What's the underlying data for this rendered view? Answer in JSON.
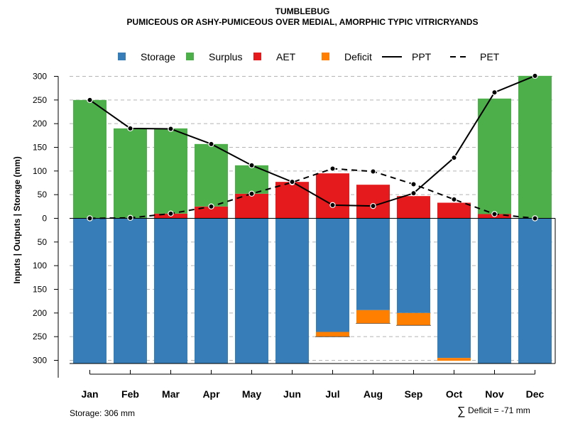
{
  "chart_data": {
    "type": "bar",
    "title": "TUMBLEBUG",
    "subtitle": "PUMICEOUS OR ASHY-PUMICEOUS OVER MEDIAL, AMORPHIC TYPIC VITRICRYANDS",
    "ylabel": "Inputs | Outputs | Storage     (mm)",
    "ylim": [
      -306,
      306
    ],
    "y_ticks": [
      300,
      250,
      200,
      150,
      100,
      50,
      0,
      -50,
      -100,
      -150,
      -200,
      -250,
      -300
    ],
    "y_tick_labels": [
      "300",
      "250",
      "200",
      "150",
      "100",
      "50",
      "0",
      "50",
      "100",
      "150",
      "200",
      "250",
      "300"
    ],
    "grid": "horizontal dashed",
    "legend_position": "top",
    "categories": [
      "Jan",
      "Feb",
      "Mar",
      "Apr",
      "May",
      "Jun",
      "Jul",
      "Aug",
      "Sep",
      "Oct",
      "Nov",
      "Dec"
    ],
    "series": [
      {
        "name": "Storage",
        "kind": "bar-below",
        "color": "#377EB8",
        "values": [
          306,
          306,
          306,
          306,
          306,
          306,
          240,
          194,
          200,
          295,
          306,
          306
        ]
      },
      {
        "name": "Surplus",
        "kind": "bar-above",
        "color": "#4DAF4A",
        "values": [
          250,
          190,
          180,
          132,
          60,
          0,
          0,
          0,
          0,
          0,
          244,
          301
        ]
      },
      {
        "name": "AET",
        "kind": "bar-above",
        "color": "#E41A1C",
        "values": [
          0,
          0,
          10,
          25,
          52,
          77,
          95,
          71,
          47,
          33,
          9,
          0
        ]
      },
      {
        "name": "Deficit",
        "kind": "bar-below",
        "color": "#FF7F00",
        "values": [
          0,
          0,
          0,
          0,
          0,
          0,
          10,
          28,
          26,
          6,
          0,
          0
        ]
      },
      {
        "name": "PPT",
        "kind": "line",
        "style": "solid",
        "color": "#000000",
        "values": [
          250,
          190,
          189,
          157,
          112,
          77,
          28,
          26,
          53,
          128,
          266,
          301
        ]
      },
      {
        "name": "PET",
        "kind": "line",
        "style": "dashed",
        "color": "#000000",
        "values": [
          0,
          1,
          10,
          25,
          52,
          76,
          105,
          99,
          72,
          40,
          9,
          0
        ]
      }
    ],
    "footnote_storage": "Storage: 306 mm",
    "footnote_deficit_symbol": "∑",
    "footnote_deficit": "Deficit = -71 mm"
  }
}
